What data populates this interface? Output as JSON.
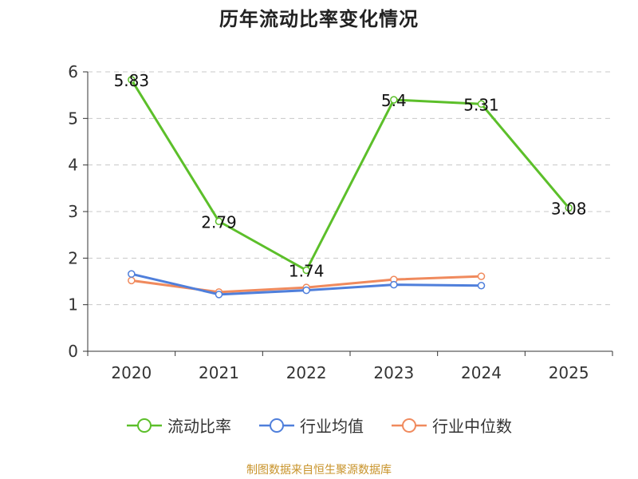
{
  "chart_data": {
    "type": "line",
    "title": "历年流动比率变化情况",
    "categories": [
      "2020",
      "2021",
      "2022",
      "2023",
      "2024",
      "2025"
    ],
    "ylim": [
      0,
      6
    ],
    "yticks": [
      0,
      1,
      2,
      3,
      4,
      5,
      6
    ],
    "grid": true,
    "legend_position": "bottom",
    "series": [
      {
        "name": "流动比率",
        "color": "#5cbf2a",
        "values": [
          5.83,
          2.79,
          1.74,
          5.4,
          5.31,
          3.08
        ],
        "labels": [
          "5.83",
          "2.79",
          "1.74",
          "5.4",
          "5.31",
          "3.08"
        ]
      },
      {
        "name": "行业均值",
        "color": "#4f7fdb",
        "values": [
          1.66,
          1.22,
          1.31,
          1.43,
          1.41,
          null
        ]
      },
      {
        "name": "行业中位数",
        "color": "#f08a5d",
        "values": [
          1.52,
          1.27,
          1.37,
          1.54,
          1.61,
          null
        ]
      }
    ]
  },
  "footer": {
    "source": "制图数据来自恒生聚源数据库"
  }
}
